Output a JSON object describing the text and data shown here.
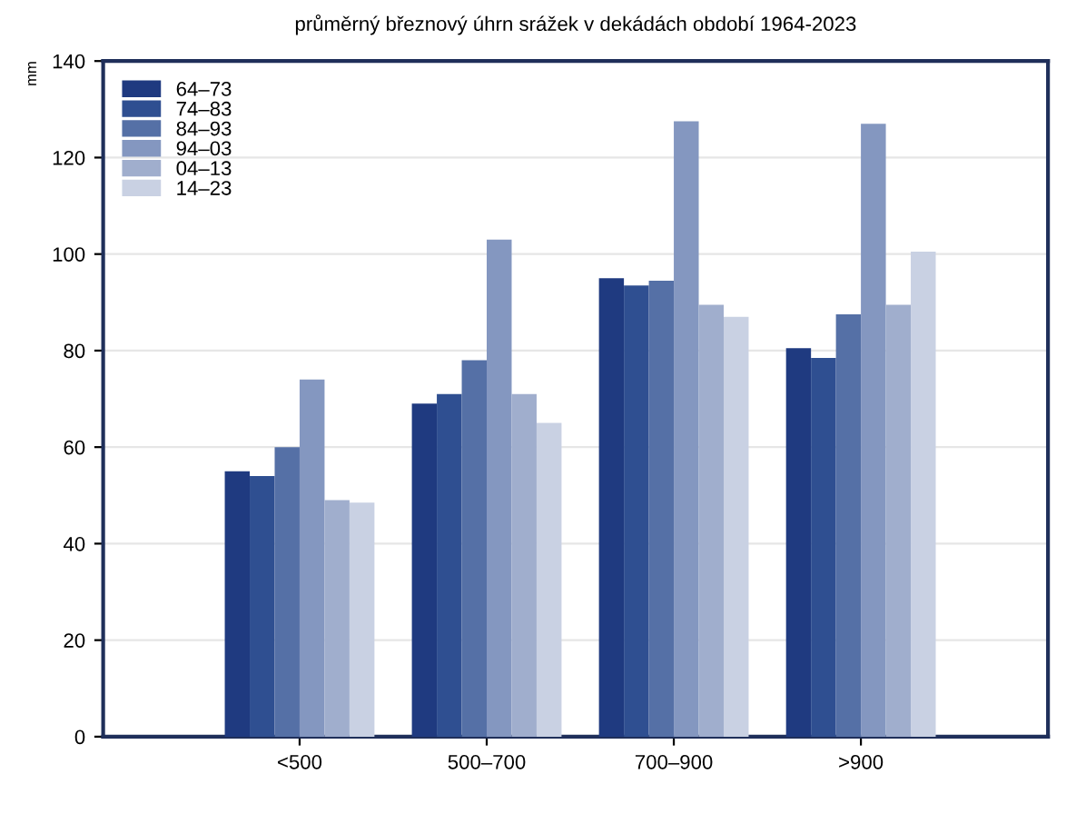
{
  "chart_data": {
    "type": "bar",
    "title": "průměrný březnový úhrn srážek v dekádách období 1964-2023",
    "ylabel": "mm",
    "categories": [
      "<500",
      "500–700",
      "700–900",
      ">900"
    ],
    "series": [
      {
        "name": "64–73",
        "color": "#1f3a80",
        "values": [
          55,
          69,
          95,
          80.5
        ]
      },
      {
        "name": "74–83",
        "color": "#2f4f91",
        "values": [
          54,
          71,
          93.5,
          78.5
        ]
      },
      {
        "name": "84–93",
        "color": "#5570a6",
        "values": [
          60,
          78,
          94.5,
          87.5
        ]
      },
      {
        "name": "94–03",
        "color": "#8497c0",
        "values": [
          74,
          103,
          127.5,
          127
        ]
      },
      {
        "name": "04–13",
        "color": "#a0aecd",
        "values": [
          49,
          71,
          89.5,
          89.5
        ]
      },
      {
        "name": "14–23",
        "color": "#c9d1e3",
        "values": [
          48.5,
          65,
          87,
          100.5
        ]
      }
    ],
    "ylim": [
      0,
      140
    ],
    "yticks": [
      0,
      20,
      40,
      60,
      80,
      100,
      120,
      140
    ],
    "grid": "y",
    "legend": "top left"
  }
}
